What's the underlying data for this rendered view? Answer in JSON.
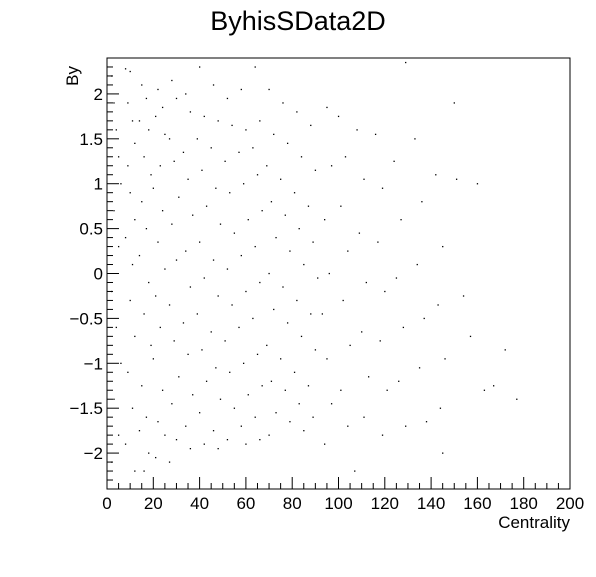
{
  "chart_data": {
    "type": "scatter",
    "title": "ByhisSData2D",
    "xlabel": "Centrality",
    "ylabel": "By",
    "xlim": [
      0,
      200
    ],
    "ylim": [
      -2.4,
      2.4
    ],
    "x_ticks": [
      0,
      20,
      40,
      60,
      80,
      100,
      120,
      140,
      160,
      180,
      200
    ],
    "y_ticks": [
      -2,
      -1.5,
      -1,
      -0.5,
      0,
      0.5,
      1,
      1.5,
      2
    ],
    "x_tick_labels": [
      "0",
      "20",
      "40",
      "60",
      "80",
      "100",
      "120",
      "140",
      "160",
      "180",
      "200"
    ],
    "y_tick_labels": [
      "−2",
      "−1.5",
      "−1",
      "−0.5",
      "0",
      "0.5",
      "1",
      "1.5",
      "2"
    ],
    "grid": false,
    "marker_color": "#000000",
    "points": [
      [
        2,
        2.2
      ],
      [
        3,
        1.9
      ],
      [
        4,
        1.6
      ],
      [
        5,
        1.3
      ],
      [
        6,
        1.0
      ],
      [
        3,
        0.7
      ],
      [
        5,
        0.3
      ],
      [
        2,
        -0.2
      ],
      [
        4,
        -0.6
      ],
      [
        6,
        -1.0
      ],
      [
        3,
        -1.4
      ],
      [
        5,
        -1.8
      ],
      [
        2,
        -2.1
      ],
      [
        8,
        2.28
      ],
      [
        10,
        2.25
      ],
      [
        9,
        1.9
      ],
      [
        11,
        1.7
      ],
      [
        12,
        1.45
      ],
      [
        9,
        1.2
      ],
      [
        10,
        0.9
      ],
      [
        12,
        0.6
      ],
      [
        8,
        0.4
      ],
      [
        11,
        0.1
      ],
      [
        10,
        -0.3
      ],
      [
        12,
        -0.7
      ],
      [
        9,
        -1.1
      ],
      [
        11,
        -1.5
      ],
      [
        8,
        -1.9
      ],
      [
        12,
        -2.2
      ],
      [
        15,
        2.1
      ],
      [
        17,
        1.95
      ],
      [
        14,
        1.7
      ],
      [
        18,
        1.6
      ],
      [
        16,
        1.3
      ],
      [
        19,
        1.1
      ],
      [
        15,
        0.8
      ],
      [
        17,
        0.5
      ],
      [
        14,
        0.2
      ],
      [
        18,
        -0.1
      ],
      [
        16,
        -0.45
      ],
      [
        19,
        -0.8
      ],
      [
        15,
        -1.25
      ],
      [
        17,
        -1.6
      ],
      [
        14,
        -1.75
      ],
      [
        18,
        -2.0
      ],
      [
        16,
        -2.2
      ],
      [
        22,
        2.05
      ],
      [
        24,
        1.85
      ],
      [
        21,
        1.75
      ],
      [
        25,
        1.55
      ],
      [
        23,
        1.2
      ],
      [
        20,
        0.95
      ],
      [
        24,
        0.7
      ],
      [
        22,
        0.35
      ],
      [
        25,
        0.05
      ],
      [
        21,
        -0.25
      ],
      [
        23,
        -0.6
      ],
      [
        20,
        -0.95
      ],
      [
        24,
        -1.3
      ],
      [
        22,
        -1.65
      ],
      [
        25,
        -1.8
      ],
      [
        21,
        -2.05
      ],
      [
        28,
        2.15
      ],
      [
        30,
        1.95
      ],
      [
        27,
        1.5
      ],
      [
        29,
        1.25
      ],
      [
        31,
        0.85
      ],
      [
        28,
        0.55
      ],
      [
        30,
        0.15
      ],
      [
        27,
        -0.35
      ],
      [
        29,
        -0.75
      ],
      [
        31,
        -1.15
      ],
      [
        28,
        -1.45
      ],
      [
        30,
        -1.85
      ],
      [
        27,
        -2.1
      ],
      [
        34,
        2.0
      ],
      [
        36,
        1.8
      ],
      [
        33,
        1.35
      ],
      [
        35,
        1.05
      ],
      [
        37,
        0.65
      ],
      [
        34,
        0.25
      ],
      [
        36,
        -0.15
      ],
      [
        33,
        -0.55
      ],
      [
        35,
        -0.9
      ],
      [
        37,
        -1.35
      ],
      [
        34,
        -1.7
      ],
      [
        36,
        -1.95
      ],
      [
        40,
        2.3
      ],
      [
        42,
        1.75
      ],
      [
        39,
        1.5
      ],
      [
        41,
        1.15
      ],
      [
        43,
        0.75
      ],
      [
        40,
        0.35
      ],
      [
        42,
        -0.05
      ],
      [
        39,
        -0.45
      ],
      [
        41,
        -0.85
      ],
      [
        43,
        -1.2
      ],
      [
        40,
        -1.55
      ],
      [
        42,
        -1.9
      ],
      [
        46,
        2.1
      ],
      [
        48,
        1.7
      ],
      [
        45,
        1.4
      ],
      [
        47,
        0.95
      ],
      [
        49,
        0.55
      ],
      [
        46,
        0.15
      ],
      [
        48,
        -0.25
      ],
      [
        45,
        -0.65
      ],
      [
        47,
        -1.05
      ],
      [
        49,
        -1.4
      ],
      [
        46,
        -1.75
      ],
      [
        48,
        -1.95
      ],
      [
        52,
        1.95
      ],
      [
        54,
        1.65
      ],
      [
        51,
        1.25
      ],
      [
        53,
        0.9
      ],
      [
        55,
        0.45
      ],
      [
        52,
        0.05
      ],
      [
        54,
        -0.35
      ],
      [
        51,
        -0.75
      ],
      [
        53,
        -1.1
      ],
      [
        55,
        -1.5
      ],
      [
        52,
        -1.85
      ],
      [
        58,
        2.05
      ],
      [
        60,
        1.6
      ],
      [
        57,
        1.35
      ],
      [
        59,
        1.0
      ],
      [
        61,
        0.6
      ],
      [
        58,
        0.2
      ],
      [
        60,
        -0.2
      ],
      [
        57,
        -0.6
      ],
      [
        59,
        -1.0
      ],
      [
        61,
        -1.35
      ],
      [
        58,
        -1.7
      ],
      [
        60,
        -1.9
      ],
      [
        64,
        2.3
      ],
      [
        66,
        1.7
      ],
      [
        63,
        1.4
      ],
      [
        65,
        1.1
      ],
      [
        67,
        0.7
      ],
      [
        64,
        0.3
      ],
      [
        66,
        -0.1
      ],
      [
        63,
        -0.5
      ],
      [
        65,
        -0.9
      ],
      [
        67,
        -1.25
      ],
      [
        64,
        -1.6
      ],
      [
        66,
        -1.85
      ],
      [
        70,
        2.05
      ],
      [
        72,
        1.55
      ],
      [
        69,
        1.2
      ],
      [
        71,
        0.8
      ],
      [
        73,
        0.4
      ],
      [
        70,
        0.0
      ],
      [
        72,
        -0.4
      ],
      [
        69,
        -0.8
      ],
      [
        71,
        -1.2
      ],
      [
        73,
        -1.55
      ],
      [
        70,
        -1.8
      ],
      [
        76,
        1.9
      ],
      [
        78,
        1.45
      ],
      [
        75,
        1.05
      ],
      [
        77,
        0.65
      ],
      [
        79,
        0.25
      ],
      [
        76,
        -0.15
      ],
      [
        78,
        -0.55
      ],
      [
        75,
        -0.95
      ],
      [
        77,
        -1.3
      ],
      [
        79,
        -1.65
      ],
      [
        82,
        1.8
      ],
      [
        84,
        1.3
      ],
      [
        81,
        0.9
      ],
      [
        83,
        0.5
      ],
      [
        85,
        0.1
      ],
      [
        82,
        -0.3
      ],
      [
        84,
        -0.7
      ],
      [
        81,
        -1.1
      ],
      [
        83,
        -1.45
      ],
      [
        85,
        -1.75
      ],
      [
        88,
        1.65
      ],
      [
        90,
        1.15
      ],
      [
        87,
        0.75
      ],
      [
        89,
        0.35
      ],
      [
        91,
        -0.05
      ],
      [
        88,
        -0.45
      ],
      [
        90,
        -0.85
      ],
      [
        87,
        -1.25
      ],
      [
        89,
        -1.6
      ],
      [
        95,
        1.85
      ],
      [
        97,
        1.2
      ],
      [
        94,
        0.6
      ],
      [
        96,
        0.0
      ],
      [
        93,
        -0.45
      ],
      [
        95,
        -0.95
      ],
      [
        97,
        -1.45
      ],
      [
        94,
        -1.9
      ],
      [
        100,
        1.75
      ],
      [
        103,
        1.3
      ],
      [
        101,
        0.75
      ],
      [
        104,
        0.25
      ],
      [
        102,
        -0.3
      ],
      [
        105,
        -0.8
      ],
      [
        101,
        -1.3
      ],
      [
        104,
        -1.7
      ],
      [
        107,
        -2.2
      ],
      [
        108,
        1.6
      ],
      [
        111,
        1.05
      ],
      [
        109,
        0.45
      ],
      [
        112,
        -0.1
      ],
      [
        110,
        -0.65
      ],
      [
        113,
        -1.15
      ],
      [
        111,
        -1.6
      ],
      [
        116,
        1.55
      ],
      [
        119,
        0.95
      ],
      [
        117,
        0.35
      ],
      [
        120,
        -0.2
      ],
      [
        118,
        -0.75
      ],
      [
        121,
        -1.3
      ],
      [
        119,
        -1.8
      ],
      [
        124,
        1.25
      ],
      [
        127,
        0.6
      ],
      [
        125,
        -0.05
      ],
      [
        128,
        -0.6
      ],
      [
        126,
        -1.2
      ],
      [
        129,
        -1.7
      ],
      [
        129,
        2.35
      ],
      [
        133,
        1.5
      ],
      [
        136,
        0.8
      ],
      [
        134,
        0.1
      ],
      [
        137,
        -0.5
      ],
      [
        135,
        -1.05
      ],
      [
        138,
        -1.65
      ],
      [
        142,
        1.1
      ],
      [
        145,
        0.3
      ],
      [
        143,
        -0.35
      ],
      [
        146,
        -0.95
      ],
      [
        144,
        -1.5
      ],
      [
        151,
        1.05
      ],
      [
        154,
        -0.25
      ],
      [
        157,
        -0.7
      ],
      [
        160,
        1.0
      ],
      [
        163,
        -1.3
      ],
      [
        167,
        -1.25
      ],
      [
        172,
        -0.85
      ],
      [
        177,
        -1.4
      ],
      [
        150,
        1.9
      ],
      [
        145,
        -2.0
      ]
    ]
  }
}
